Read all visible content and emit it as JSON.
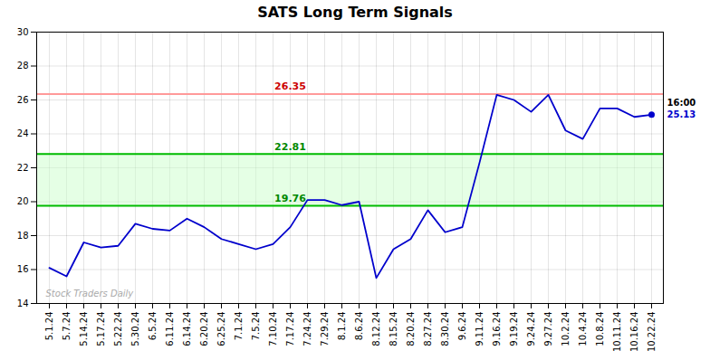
{
  "chart_data": {
    "type": "line",
    "title": "SATS Long Term Signals",
    "categories": [
      "5.1.24",
      "5.7.24",
      "5.14.24",
      "5.17.24",
      "5.22.24",
      "5.30.24",
      "6.5.24",
      "6.11.24",
      "6.14.24",
      "6.20.24",
      "6.25.24",
      "7.1.24",
      "7.5.24",
      "7.10.24",
      "7.17.24",
      "7.24.24",
      "7.29.24",
      "8.1.24",
      "8.6.24",
      "8.12.24",
      "8.15.24",
      "8.20.24",
      "8.27.24",
      "8.30.24",
      "9.6.24",
      "9.11.24",
      "9.16.24",
      "9.19.24",
      "9.24.24",
      "9.27.24",
      "10.2.24",
      "10.4.24",
      "10.8.24",
      "10.11.24",
      "10.16.24",
      "10.22.24"
    ],
    "values": [
      16.1,
      15.6,
      17.6,
      17.3,
      17.4,
      18.7,
      18.4,
      18.3,
      19.0,
      18.5,
      17.8,
      17.5,
      17.2,
      17.5,
      18.5,
      20.1,
      20.1,
      19.8,
      20.0,
      15.5,
      17.2,
      17.8,
      19.5,
      18.2,
      18.5,
      22.3,
      26.3,
      26.0,
      25.3,
      26.3,
      24.2,
      23.7,
      25.5,
      25.5,
      25.0,
      25.13
    ],
    "color": "#0000cc",
    "ylim": [
      14,
      30
    ],
    "yticks": [
      14,
      16,
      18,
      20,
      22,
      24,
      26,
      28,
      30
    ],
    "grid": true,
    "hlines": [
      {
        "value": 26.35,
        "label": "26.35",
        "color": "#ff9999",
        "label_color": "#cc0000"
      },
      {
        "value": 22.81,
        "label": "22.81",
        "color": "#00bb00",
        "label_color": "#008800"
      },
      {
        "value": 19.76,
        "label": "19.76",
        "color": "#00bb00",
        "label_color": "#008800"
      }
    ],
    "band": {
      "from": 19.76,
      "to": 22.81,
      "color": "#ccffcc"
    },
    "last_label": {
      "time": "16:00",
      "value": 25.13,
      "color": "#0000cc"
    },
    "watermark": {
      "text": "Stock Traders Daily",
      "color": "#aaaaaa"
    }
  }
}
